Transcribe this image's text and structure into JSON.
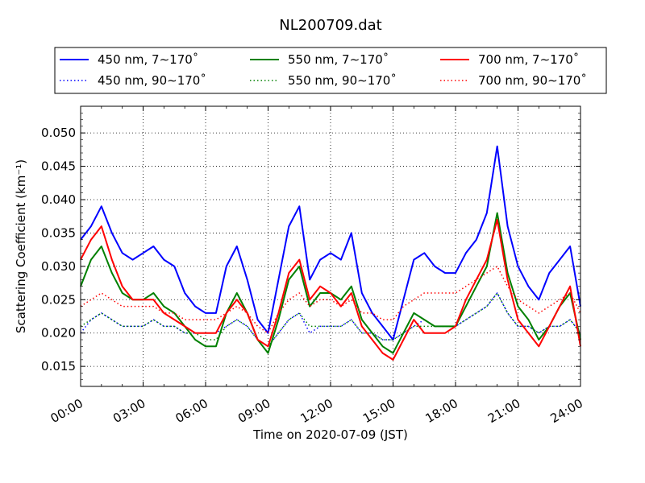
{
  "chart_data": {
    "type": "line",
    "title": "NL200709.dat",
    "xlabel": "Time on 2020-07-09 (JST)",
    "ylabel": "Scattering Coefficient (km⁻¹)",
    "x_unit": "hours",
    "xlim": [
      0,
      24
    ],
    "ylim": [
      0.012,
      0.054
    ],
    "x_ticks": [
      "00:00",
      "03:00",
      "06:00",
      "09:00",
      "12:00",
      "15:00",
      "18:00",
      "21:00",
      "24:00"
    ],
    "y_ticks": [
      "0.015",
      "0.020",
      "0.025",
      "0.030",
      "0.035",
      "0.040",
      "0.045",
      "0.050"
    ],
    "grid": true,
    "legend_position": "top",
    "x": [
      0,
      0.5,
      1,
      1.5,
      2,
      2.5,
      3,
      3.5,
      4,
      4.5,
      5,
      5.5,
      6,
      6.5,
      7,
      7.5,
      8,
      8.5,
      9,
      9.5,
      10,
      10.5,
      11,
      11.5,
      12,
      12.5,
      13,
      13.5,
      14,
      14.5,
      15,
      15.5,
      16,
      16.5,
      17,
      17.5,
      18,
      18.5,
      19,
      19.5,
      20,
      20.5,
      21,
      21.5,
      22,
      22.5,
      23,
      23.5,
      24
    ],
    "series": [
      {
        "name": "450 nm, 7∼170˚",
        "color": "#0000ff",
        "style": "solid",
        "values": [
          0.034,
          0.036,
          0.039,
          0.035,
          0.032,
          0.031,
          0.032,
          0.033,
          0.031,
          0.03,
          0.026,
          0.024,
          0.023,
          0.023,
          0.03,
          0.033,
          0.028,
          0.022,
          0.02,
          0.028,
          0.036,
          0.039,
          0.028,
          0.031,
          0.032,
          0.031,
          0.035,
          0.026,
          0.023,
          0.021,
          0.019,
          0.025,
          0.031,
          0.032,
          0.03,
          0.029,
          0.029,
          0.032,
          0.034,
          0.038,
          0.048,
          0.036,
          0.03,
          0.027,
          0.025,
          0.029,
          0.031,
          0.033,
          0.024
        ]
      },
      {
        "name": "450 nm, 90∼170˚",
        "color": "#0000ff",
        "style": "dotted",
        "values": [
          0.02,
          0.022,
          0.023,
          0.022,
          0.021,
          0.021,
          0.021,
          0.022,
          0.021,
          0.021,
          0.02,
          0.02,
          0.02,
          0.02,
          0.021,
          0.022,
          0.021,
          0.019,
          0.018,
          0.02,
          0.022,
          0.023,
          0.02,
          0.021,
          0.021,
          0.021,
          0.022,
          0.02,
          0.02,
          0.019,
          0.019,
          0.02,
          0.021,
          0.022,
          0.021,
          0.021,
          0.021,
          0.022,
          0.023,
          0.024,
          0.026,
          0.023,
          0.021,
          0.021,
          0.02,
          0.021,
          0.021,
          0.022,
          0.02
        ]
      },
      {
        "name": "550 nm, 7∼170˚",
        "color": "#008000",
        "style": "solid",
        "values": [
          0.027,
          0.031,
          0.033,
          0.029,
          0.026,
          0.025,
          0.025,
          0.026,
          0.024,
          0.023,
          0.021,
          0.019,
          0.018,
          0.018,
          0.023,
          0.026,
          0.023,
          0.019,
          0.017,
          0.022,
          0.028,
          0.03,
          0.024,
          0.026,
          0.026,
          0.025,
          0.027,
          0.022,
          0.02,
          0.018,
          0.017,
          0.02,
          0.023,
          0.022,
          0.021,
          0.021,
          0.021,
          0.024,
          0.027,
          0.03,
          0.038,
          0.029,
          0.024,
          0.022,
          0.019,
          0.021,
          0.024,
          0.026,
          0.019
        ]
      },
      {
        "name": "550 nm, 90∼170˚",
        "color": "#008000",
        "style": "dotted",
        "values": [
          0.021,
          0.022,
          0.023,
          0.022,
          0.021,
          0.021,
          0.021,
          0.022,
          0.021,
          0.021,
          0.02,
          0.02,
          0.019,
          0.019,
          0.021,
          0.022,
          0.021,
          0.019,
          0.018,
          0.02,
          0.022,
          0.023,
          0.021,
          0.021,
          0.021,
          0.021,
          0.022,
          0.02,
          0.02,
          0.019,
          0.019,
          0.02,
          0.021,
          0.021,
          0.021,
          0.021,
          0.021,
          0.022,
          0.023,
          0.024,
          0.026,
          0.023,
          0.021,
          0.021,
          0.02,
          0.021,
          0.021,
          0.022,
          0.02
        ]
      },
      {
        "name": "700 nm, 7∼170˚",
        "color": "#ff0000",
        "style": "solid",
        "values": [
          0.031,
          0.034,
          0.036,
          0.031,
          0.027,
          0.025,
          0.025,
          0.025,
          0.023,
          0.022,
          0.021,
          0.02,
          0.02,
          0.02,
          0.023,
          0.025,
          0.023,
          0.019,
          0.018,
          0.023,
          0.029,
          0.031,
          0.025,
          0.027,
          0.026,
          0.024,
          0.026,
          0.021,
          0.019,
          0.017,
          0.016,
          0.019,
          0.022,
          0.02,
          0.02,
          0.02,
          0.021,
          0.025,
          0.028,
          0.031,
          0.037,
          0.028,
          0.022,
          0.02,
          0.018,
          0.021,
          0.024,
          0.027,
          0.018
        ]
      },
      {
        "name": "700 nm, 90∼170˚",
        "color": "#ff0000",
        "style": "dotted",
        "values": [
          0.024,
          0.025,
          0.026,
          0.025,
          0.024,
          0.024,
          0.024,
          0.024,
          0.023,
          0.023,
          0.022,
          0.022,
          0.022,
          0.022,
          0.023,
          0.024,
          0.023,
          0.021,
          0.02,
          0.023,
          0.025,
          0.026,
          0.024,
          0.025,
          0.025,
          0.024,
          0.025,
          0.023,
          0.023,
          0.022,
          0.022,
          0.024,
          0.025,
          0.026,
          0.026,
          0.026,
          0.026,
          0.027,
          0.028,
          0.029,
          0.03,
          0.027,
          0.025,
          0.024,
          0.023,
          0.024,
          0.025,
          0.026,
          0.023
        ]
      }
    ]
  }
}
